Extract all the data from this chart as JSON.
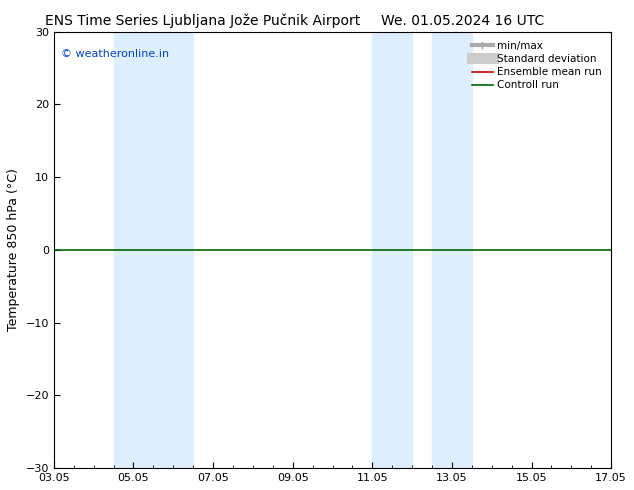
{
  "title_left": "ENS Time Series Ljubljana Jože Pučnik Airport",
  "title_right": "We. 01.05.2024 16 UTC",
  "ylabel": "Temperature 850 hPa (°C)",
  "watermark": "© weatheronline.in",
  "xlim": [
    0,
    14
  ],
  "ylim": [
    -30,
    30
  ],
  "yticks": [
    -30,
    -20,
    -10,
    0,
    10,
    20,
    30
  ],
  "xtick_labels": [
    "03.05",
    "05.05",
    "07.05",
    "09.05",
    "11.05",
    "13.05",
    "15.05",
    "17.05"
  ],
  "xtick_positions": [
    0,
    2,
    4,
    6,
    8,
    10,
    12,
    14
  ],
  "shaded_bands": [
    {
      "x_start": 1.5,
      "x_end": 2.5,
      "color": "#ddeeff"
    },
    {
      "x_start": 2.5,
      "x_end": 3.5,
      "color": "#ddeeff"
    },
    {
      "x_start": 8.0,
      "x_end": 9.0,
      "color": "#ddeeff"
    },
    {
      "x_start": 9.5,
      "x_end": 10.5,
      "color": "#ddeeff"
    }
  ],
  "hline_y": 0,
  "hline_color": "#006600",
  "hline_linewidth": 1.2,
  "background_color": "#ffffff",
  "plot_bg_color": "#ffffff",
  "border_color": "#000000",
  "legend_entries": [
    {
      "label": "min/max",
      "color": "#aaaaaa",
      "linewidth": 3,
      "linestyle": "-"
    },
    {
      "label": "Standard deviation",
      "color": "#cccccc",
      "linewidth": 8,
      "linestyle": "-"
    },
    {
      "label": "Ensemble mean run",
      "color": "#cc0000",
      "linewidth": 1.2,
      "linestyle": "-"
    },
    {
      "label": "Controll run",
      "color": "#006600",
      "linewidth": 1.2,
      "linestyle": "-"
    }
  ],
  "title_fontsize": 10,
  "axis_label_fontsize": 9,
  "tick_fontsize": 8,
  "watermark_color": "#0044cc",
  "watermark_fontsize": 8,
  "legend_fontsize": 7.5
}
